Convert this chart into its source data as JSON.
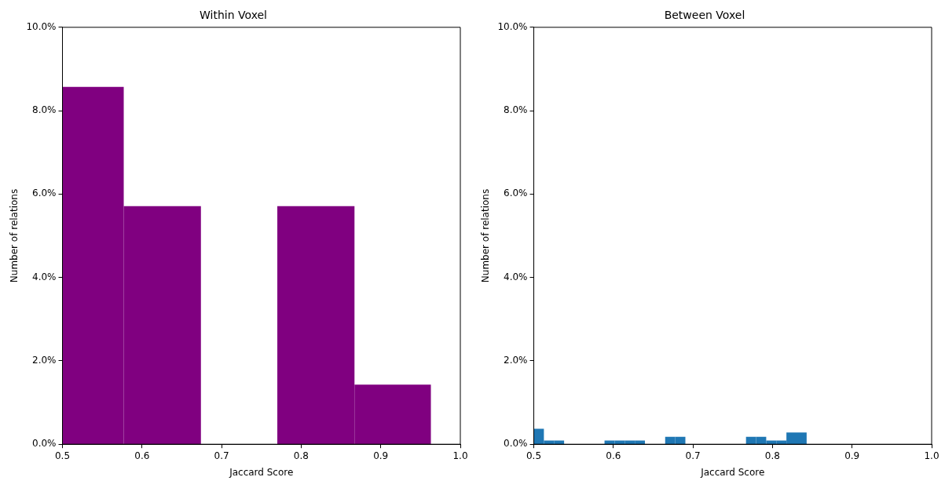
{
  "chart_data": [
    {
      "type": "histogram",
      "title": "Within Voxel",
      "xlabel": "Jaccard Score",
      "ylabel": "Number of relations",
      "color": "#800080",
      "bins": [
        0.5,
        0.577,
        0.674,
        0.77,
        0.867,
        0.963
      ],
      "values": [
        8.57,
        5.71,
        0,
        5.71,
        1.43
      ],
      "xlim": [
        0.5,
        1.0
      ],
      "xticks": [
        0.5,
        0.6,
        0.7,
        0.8,
        0.9,
        {
          "value": 1,
          "label": "1.0"
        }
      ],
      "ylim": [
        0,
        10
      ],
      "yticks": [
        {
          "value": 0,
          "label": "0.0%"
        },
        {
          "value": 2,
          "label": "2.0%"
        },
        {
          "value": 4,
          "label": "4.0%"
        },
        {
          "value": 6,
          "label": "6.0%"
        },
        {
          "value": 8,
          "label": "8.0%"
        },
        {
          "value": 10,
          "label": "10.0%"
        }
      ],
      "grid": false,
      "legend": false
    },
    {
      "type": "histogram",
      "title": "Between Voxel",
      "xlabel": "Jaccard Score",
      "ylabel": "Number of relations",
      "color": "#1f77b4",
      "bins": [
        0.5,
        0.5127,
        0.5254,
        0.5381,
        0.5508,
        0.5635,
        0.5762,
        0.5889,
        0.6016,
        0.6143,
        0.627,
        0.6397,
        0.6524,
        0.6651,
        0.6778,
        0.6905,
        0.7032,
        0.7159,
        0.7286,
        0.7413,
        0.754,
        0.7667,
        0.7794,
        0.7921,
        0.8048,
        0.8175,
        0.8302,
        0.8429
      ],
      "values": [
        0.37,
        0.09,
        0.09,
        0,
        0,
        0,
        0,
        0.09,
        0.09,
        0.09,
        0.09,
        0,
        0,
        0.18,
        0.18,
        0,
        0,
        0,
        0,
        0,
        0,
        0.18,
        0.18,
        0.09,
        0.09,
        0.28,
        0.28
      ],
      "xlim": [
        0.5,
        1.0
      ],
      "xticks": [
        0.5,
        0.6,
        0.7,
        0.8,
        0.9,
        {
          "value": 1,
          "label": "1.0"
        }
      ],
      "ylim": [
        0,
        10
      ],
      "yticks": [
        {
          "value": 0,
          "label": "0.0%"
        },
        {
          "value": 2,
          "label": "2.0%"
        },
        {
          "value": 4,
          "label": "4.0%"
        },
        {
          "value": 6,
          "label": "6.0%"
        },
        {
          "value": 8,
          "label": "8.0%"
        },
        {
          "value": 10,
          "label": "10.0%"
        }
      ],
      "grid": false,
      "legend": false
    }
  ]
}
